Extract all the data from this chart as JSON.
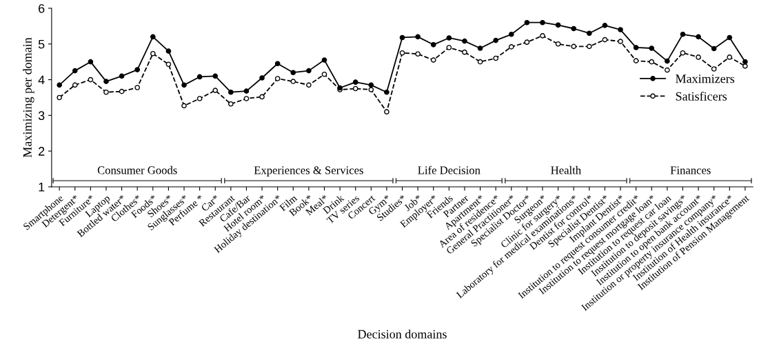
{
  "chart_data": {
    "type": "line",
    "xlabel": "Decision domains",
    "ylabel": "Maximizing per domain",
    "categories": [
      "Smartphone",
      "Detergent*",
      "Furniture*",
      "Laptop",
      "Bottled water*",
      "Clothes*",
      "Foods*",
      "Shoes*",
      "Sunglasses*",
      "Perfume *",
      "Car*",
      "Restaurant",
      "Cafe/Bar",
      "Hotel room*",
      "Holiday destination*",
      "Film",
      "Book*",
      "Meal*",
      "Drink",
      "TV series",
      "Concert",
      "Gym*",
      "Studies*",
      "Job*",
      "Employer*",
      "Friends",
      "Partner",
      "Apartment*",
      "Area of residence*",
      "General Practitioner*",
      "Specialist Doctor*",
      "Surgeon*",
      "Clinic for surgery*",
      "Laboratory for medical examinations*",
      "Dentist for control*",
      "Specialist Dentist*",
      "Implant Dentist*",
      "Institution to request consumer credit*",
      "Institution to request mortgage loan*",
      "Institution to request car loan",
      "Institution to deposit savings*",
      "Institution to open bank account*",
      "Institution or property insurance company*",
      "Institution of Health insurance*",
      "Institution of Pension Management"
    ],
    "series": [
      {
        "name": "Maximizers",
        "color": "#000000",
        "line_style": "solid",
        "values": [
          3.85,
          4.25,
          4.5,
          3.95,
          4.1,
          4.28,
          5.2,
          4.8,
          3.85,
          4.08,
          4.1,
          3.65,
          3.68,
          4.05,
          4.45,
          4.2,
          4.25,
          4.55,
          3.77,
          3.93,
          3.85,
          3.65,
          5.18,
          5.2,
          4.98,
          5.17,
          5.08,
          4.88,
          5.1,
          5.27,
          5.6,
          5.6,
          5.53,
          5.43,
          5.3,
          5.52,
          5.4,
          4.9,
          4.88,
          4.52,
          5.27,
          5.2,
          4.87,
          5.18,
          4.5
        ]
      },
      {
        "name": "Satisficers",
        "color": "#000000",
        "line_style": "dashed",
        "values": [
          3.5,
          3.85,
          4.0,
          3.65,
          3.67,
          3.78,
          4.73,
          4.43,
          3.27,
          3.47,
          3.7,
          3.32,
          3.47,
          3.52,
          4.03,
          3.95,
          3.85,
          4.15,
          3.72,
          3.75,
          3.72,
          3.1,
          4.75,
          4.72,
          4.55,
          4.9,
          4.77,
          4.5,
          4.6,
          4.92,
          5.05,
          5.23,
          5.0,
          4.93,
          4.93,
          5.12,
          5.07,
          4.53,
          4.5,
          4.27,
          4.75,
          4.63,
          4.3,
          4.63,
          4.38
        ]
      }
    ],
    "annotations": [
      "Consumer Goods",
      "Experiences & Services",
      "Life Decision",
      "Health",
      "Finances"
    ],
    "ylim": [
      1,
      6
    ],
    "yticks": [
      1,
      2,
      3,
      4,
      5,
      6
    ],
    "marker": "circle",
    "legend": "right",
    "grid": false
  }
}
